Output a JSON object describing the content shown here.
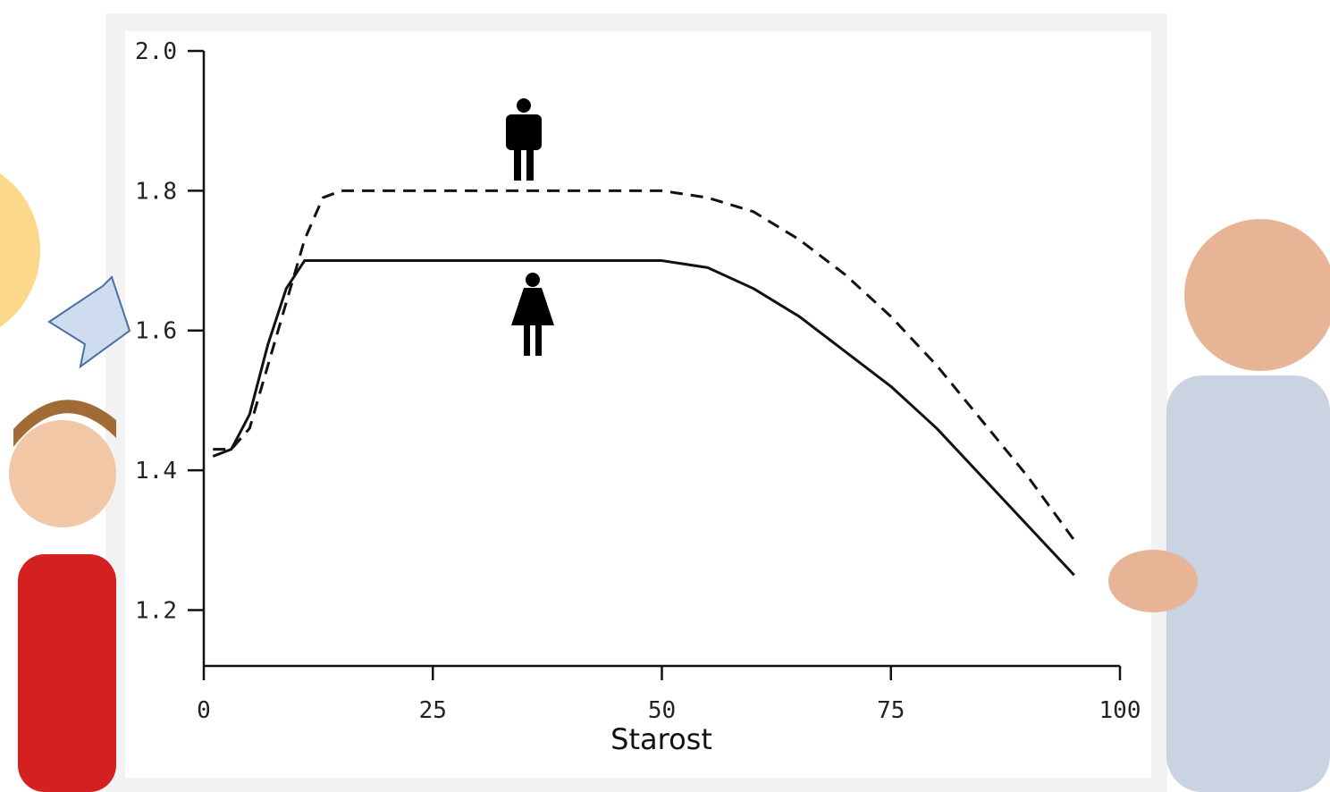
{
  "chart_data": {
    "type": "line",
    "x_label": "Starost",
    "x": [
      1,
      3,
      5,
      7,
      9,
      11,
      13,
      15,
      25,
      35,
      45,
      50,
      55,
      60,
      65,
      70,
      75,
      80,
      85,
      90,
      95
    ],
    "series": [
      {
        "color": "#111111",
        "dash": true,
        "values": [
          1.43,
          1.43,
          1.46,
          1.55,
          1.64,
          1.73,
          1.79,
          1.8,
          1.8,
          1.8,
          1.8,
          1.8,
          1.79,
          1.77,
          1.73,
          1.68,
          1.62,
          1.55,
          1.47,
          1.39,
          1.3
        ]
      },
      {
        "color": "#111111",
        "dash": false,
        "values": [
          1.42,
          1.43,
          1.48,
          1.58,
          1.66,
          1.7,
          1.7,
          1.7,
          1.7,
          1.7,
          1.7,
          1.7,
          1.69,
          1.66,
          1.62,
          1.57,
          1.52,
          1.46,
          1.39,
          1.32,
          1.25
        ]
      }
    ],
    "xlim": [
      0,
      100
    ],
    "xticks": [
      0,
      25,
      50,
      75,
      100
    ],
    "ylim": [
      1.12,
      2.0
    ],
    "yticks": [
      1.2,
      1.4,
      1.6,
      1.8,
      {
        "value": 2,
        "label": "2.0"
      }
    ]
  }
}
